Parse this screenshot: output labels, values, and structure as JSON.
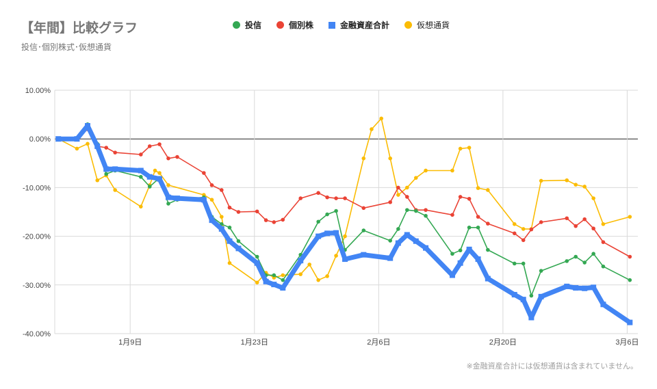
{
  "title": "【年間】比較グラフ",
  "subtitle": "投信･個別株式･仮想通貨",
  "note": "※金融資産合計には仮想通貨は含まれていません。",
  "colors": {
    "toushin": "#34a853",
    "kobetsu": "#ea4335",
    "kinyu": "#4285f4",
    "kasou": "#fbbc04",
    "grid": "#d9d9d9",
    "zero": "#222222"
  },
  "chart_data": {
    "type": "line",
    "legend_position": "top",
    "grid": true,
    "ylim": [
      -40,
      10
    ],
    "y_ticks": [
      "10.00%",
      "0.00%",
      "-10.00%",
      "-20.00%",
      "-30.00%",
      "-40.00%"
    ],
    "x_ticks": [
      "1月9日",
      "1月23日",
      "2月6日",
      "2月20日",
      "3月6日"
    ],
    "x_tick_days": [
      9,
      23,
      37,
      51,
      65
    ],
    "xlim": [
      0.5,
      66.2
    ],
    "series": [
      {
        "name": "投信",
        "style": "line-dot",
        "x": [
          0.9,
          3.0,
          4.2,
          5.3,
          6.3,
          7.3,
          10.2,
          11.2,
          12.3,
          13.3,
          14.3,
          17.3,
          18.2,
          19.3,
          20.2,
          21.2,
          23.3,
          24.3,
          25.2,
          26.2,
          28.2,
          30.2,
          31.2,
          32.2,
          33.2,
          35.3,
          38.3,
          39.2,
          40.2,
          41.2,
          42.3,
          45.3,
          46.2,
          47.2,
          48.2,
          49.3,
          52.3,
          53.3,
          54.2,
          55.3,
          58.2,
          59.2,
          60.2,
          61.2,
          62.3,
          65.3
        ],
        "y": [
          0,
          0,
          3.0,
          -1.0,
          -7.2,
          -6.5,
          -7.8,
          -9.8,
          -8.0,
          -13.3,
          -12.5,
          -12.0,
          -16.0,
          -17.5,
          -18.2,
          -21.0,
          -24.2,
          -28.0,
          -28.0,
          -29.0,
          -23.8,
          -17.0,
          -15.5,
          -14.8,
          -22.8,
          -18.8,
          -20.9,
          -18.5,
          -14.6,
          -14.8,
          -15.8,
          -23.6,
          -22.9,
          -18.2,
          -18.2,
          -22.8,
          -25.6,
          -25.6,
          -32.2,
          -27.1,
          -25.1,
          -24.2,
          -25.4,
          -23.6,
          -26.2,
          -29.0
        ]
      },
      {
        "name": "個別株",
        "style": "line-dot",
        "x": [
          0.9,
          3.0,
          4.2,
          5.3,
          6.3,
          7.3,
          10.2,
          11.2,
          12.3,
          13.3,
          14.3,
          17.3,
          18.2,
          19.3,
          20.2,
          21.2,
          23.3,
          24.3,
          25.2,
          26.2,
          28.2,
          30.2,
          31.2,
          32.2,
          33.2,
          35.3,
          38.3,
          39.2,
          40.2,
          41.2,
          42.3,
          45.3,
          46.2,
          47.2,
          48.2,
          49.3,
          52.3,
          53.3,
          54.2,
          55.3,
          58.2,
          59.2,
          60.2,
          61.2,
          62.3,
          65.3
        ],
        "y": [
          0,
          0,
          2.0,
          -1.5,
          -1.8,
          -2.8,
          -3.2,
          -1.5,
          -1.1,
          -4.0,
          -3.7,
          -7.0,
          -9.5,
          -10.5,
          -14.1,
          -15.0,
          -14.9,
          -16.7,
          -17.1,
          -16.6,
          -12.2,
          -11.1,
          -12.0,
          -12.2,
          -12.2,
          -14.2,
          -13.0,
          -10.0,
          -11.9,
          -14.6,
          -14.6,
          -15.6,
          -11.9,
          -12.3,
          -16.0,
          -17.4,
          -19.4,
          -20.8,
          -18.6,
          -17.1,
          -16.3,
          -17.9,
          -16.5,
          -18.4,
          -21.2,
          -24.2
        ]
      },
      {
        "name": "金融資産合計",
        "style": "thick-square",
        "x": [
          0.9,
          3.0,
          4.2,
          5.3,
          6.3,
          7.3,
          10.2,
          11.2,
          12.3,
          13.3,
          14.3,
          17.3,
          18.2,
          19.3,
          20.2,
          21.2,
          23.3,
          24.3,
          25.2,
          26.2,
          28.2,
          30.2,
          31.2,
          32.2,
          33.2,
          35.3,
          38.3,
          39.2,
          40.2,
          41.2,
          42.3,
          45.3,
          46.2,
          47.2,
          48.2,
          49.3,
          52.3,
          53.3,
          54.2,
          55.3,
          58.2,
          59.2,
          60.2,
          61.2,
          62.3,
          65.3
        ],
        "y": [
          0,
          0,
          2.7,
          -1.5,
          -6.2,
          -6.2,
          -6.5,
          -7.8,
          -8.2,
          -12.0,
          -12.2,
          -12.5,
          -16.7,
          -18.5,
          -21.0,
          -22.5,
          -25.5,
          -29.3,
          -29.9,
          -30.6,
          -25.0,
          -20.0,
          -19.4,
          -19.3,
          -24.7,
          -23.8,
          -24.5,
          -21.4,
          -19.7,
          -21.0,
          -22.4,
          -28.0,
          -25.5,
          -22.7,
          -24.7,
          -28.7,
          -32.0,
          -33.0,
          -36.7,
          -32.4,
          -30.3,
          -30.6,
          -30.7,
          -30.5,
          -34.0,
          -37.7
        ]
      },
      {
        "name": "仮想通貨",
        "style": "line-dot",
        "x": [
          0.9,
          3.0,
          4.2,
          5.3,
          6.3,
          7.3,
          10.2,
          11.2,
          11.8,
          12.3,
          13.3,
          17.3,
          18.2,
          19.3,
          20.2,
          23.3,
          24.3,
          25.2,
          26.2,
          28.2,
          29.2,
          30.2,
          31.2,
          32.2,
          33.2,
          35.3,
          36.2,
          37.3,
          38.3,
          39.2,
          40.2,
          41.2,
          42.3,
          45.3,
          46.2,
          47.2,
          48.2,
          49.3,
          52.3,
          53.3,
          54.2,
          55.3,
          58.2,
          59.2,
          60.2,
          61.2,
          62.3,
          65.3
        ],
        "y": [
          0,
          -2.0,
          -1.0,
          -8.5,
          -7.5,
          -10.5,
          -13.9,
          -9.5,
          -6.5,
          -7.0,
          -9.5,
          -11.5,
          -12.5,
          -16.0,
          -25.5,
          -29.5,
          -27.5,
          -28.5,
          -28.0,
          -27.8,
          -25.8,
          -29.0,
          -28.2,
          -24.0,
          -20.0,
          -4.0,
          2.0,
          4.2,
          -4.0,
          -11.5,
          -10.0,
          -8.0,
          -6.5,
          -6.5,
          -2.0,
          -1.8,
          -10.1,
          -10.5,
          -17.5,
          -18.5,
          -18.5,
          -8.6,
          -8.5,
          -9.4,
          -9.8,
          -12.2,
          -17.5,
          -16.0
        ]
      }
    ]
  }
}
